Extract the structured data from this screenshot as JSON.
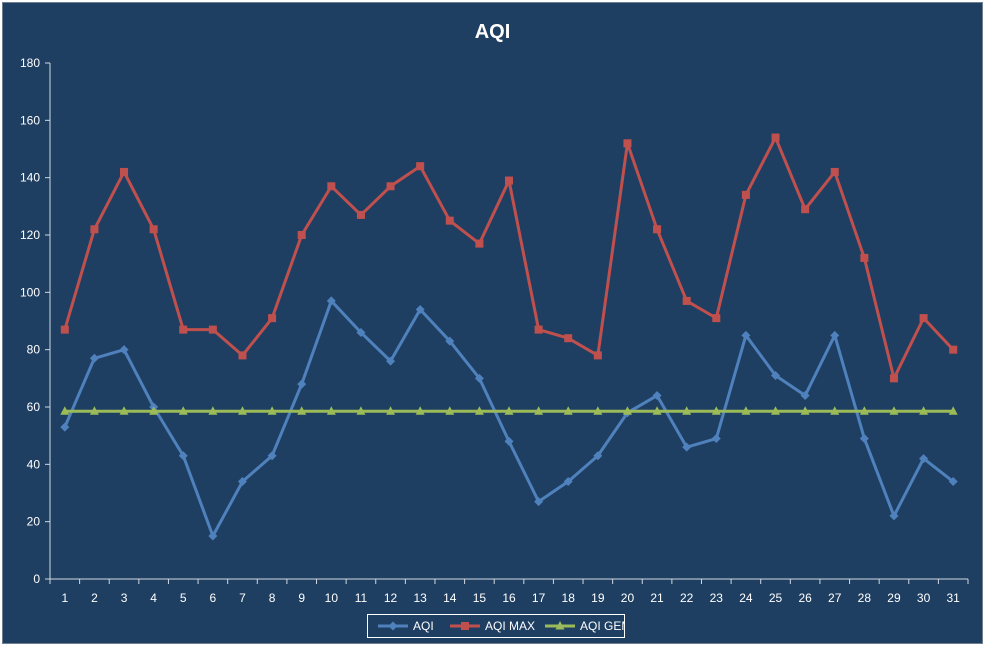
{
  "chart_data": {
    "type": "line",
    "title": "AQI",
    "xlabel": "",
    "ylabel": "",
    "ylim": [
      0,
      180
    ],
    "yticks": [
      0,
      20,
      40,
      60,
      80,
      100,
      120,
      140,
      160,
      180
    ],
    "categories": [
      "1",
      "2",
      "3",
      "4",
      "5",
      "6",
      "7",
      "8",
      "9",
      "10",
      "11",
      "12",
      "13",
      "14",
      "15",
      "16",
      "17",
      "18",
      "19",
      "20",
      "21",
      "22",
      "23",
      "24",
      "25",
      "26",
      "27",
      "28",
      "29",
      "30",
      "31"
    ],
    "grid": false,
    "legend_position": "bottom",
    "series": [
      {
        "name": "AQI",
        "color": "#4f81bd",
        "marker": "diamond",
        "values": [
          53,
          77,
          80,
          60,
          43,
          15,
          34,
          43,
          68,
          97,
          86,
          76,
          94,
          83,
          70,
          48,
          27,
          34,
          43,
          58,
          64,
          46,
          49,
          85,
          71,
          64,
          85,
          49,
          22,
          42,
          34
        ]
      },
      {
        "name": "AQI MAX",
        "color": "#c0504d",
        "marker": "square",
        "values": [
          87,
          122,
          142,
          122,
          87,
          87,
          78,
          91,
          120,
          137,
          127,
          137,
          144,
          125,
          117,
          139,
          87,
          84,
          78,
          152,
          122,
          97,
          91,
          134,
          154,
          129,
          142,
          112,
          70,
          91,
          80
        ]
      },
      {
        "name": "AQI GEM",
        "color": "#9bbb59",
        "marker": "triangle",
        "values": [
          58.5,
          58.5,
          58.5,
          58.5,
          58.5,
          58.5,
          58.5,
          58.5,
          58.5,
          58.5,
          58.5,
          58.5,
          58.5,
          58.5,
          58.5,
          58.5,
          58.5,
          58.5,
          58.5,
          58.5,
          58.5,
          58.5,
          58.5,
          58.5,
          58.5,
          58.5,
          58.5,
          58.5,
          58.5,
          58.5,
          58.5
        ]
      }
    ]
  }
}
